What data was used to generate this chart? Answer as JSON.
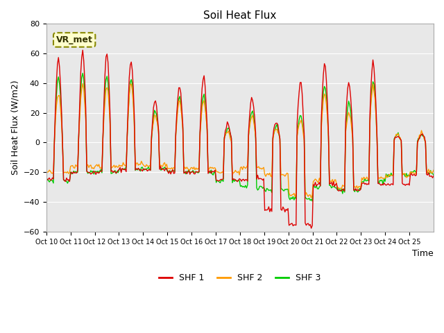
{
  "title": "Soil Heat Flux",
  "ylabel": "Soil Heat Flux (W/m2)",
  "xlabel": "Time",
  "ylim": [
    -60,
    80
  ],
  "yticks": [
    -60,
    -40,
    -20,
    0,
    20,
    40,
    60,
    80
  ],
  "colors": {
    "SHF 1": "#dd0000",
    "SHF 2": "#ff9900",
    "SHF 3": "#00cc00"
  },
  "annotation_text": "VR_met",
  "annotation_bg": "#ffffcc",
  "annotation_border": "#888800",
  "plot_bg": "#e8e8e8",
  "fig_bg": "#ffffff",
  "grid_color": "#ffffff",
  "linewidth": 1.0,
  "n_days": 16,
  "shf1_peaks": [
    57,
    62,
    60,
    55,
    28,
    38,
    44,
    12,
    30,
    14,
    40,
    53,
    40,
    54,
    5,
    5
  ],
  "shf2_peaks": [
    33,
    38,
    38,
    40,
    18,
    28,
    28,
    7,
    18,
    9,
    15,
    33,
    20,
    38,
    6,
    6
  ],
  "shf3_peaks": [
    44,
    47,
    45,
    43,
    21,
    31,
    32,
    10,
    21,
    11,
    18,
    38,
    27,
    41,
    5,
    5
  ],
  "shf1_night": [
    -25,
    -20,
    -20,
    -18,
    -18,
    -20,
    -20,
    -25,
    -25,
    -45,
    -55,
    -28,
    -32,
    -28,
    -28,
    -22
  ],
  "shf2_night": [
    -20,
    -16,
    -16,
    -15,
    -15,
    -17,
    -17,
    -20,
    -17,
    -22,
    -35,
    -26,
    -30,
    -24,
    -22,
    -20
  ],
  "shf3_night": [
    -26,
    -20,
    -20,
    -18,
    -18,
    -20,
    -20,
    -26,
    -30,
    -32,
    -38,
    -30,
    -32,
    -26,
    -22,
    -20
  ],
  "xtick_labels": [
    "Oct 10",
    "Oct 11",
    "Oct 12",
    "Oct 13",
    "Oct 14",
    "Oct 15",
    "Oct 16",
    "Oct 17",
    "Oct 18",
    "Oct 19",
    "Oct 20",
    "Oct 21",
    "Oct 22",
    "Oct 23",
    "Oct 24",
    "Oct 25"
  ]
}
